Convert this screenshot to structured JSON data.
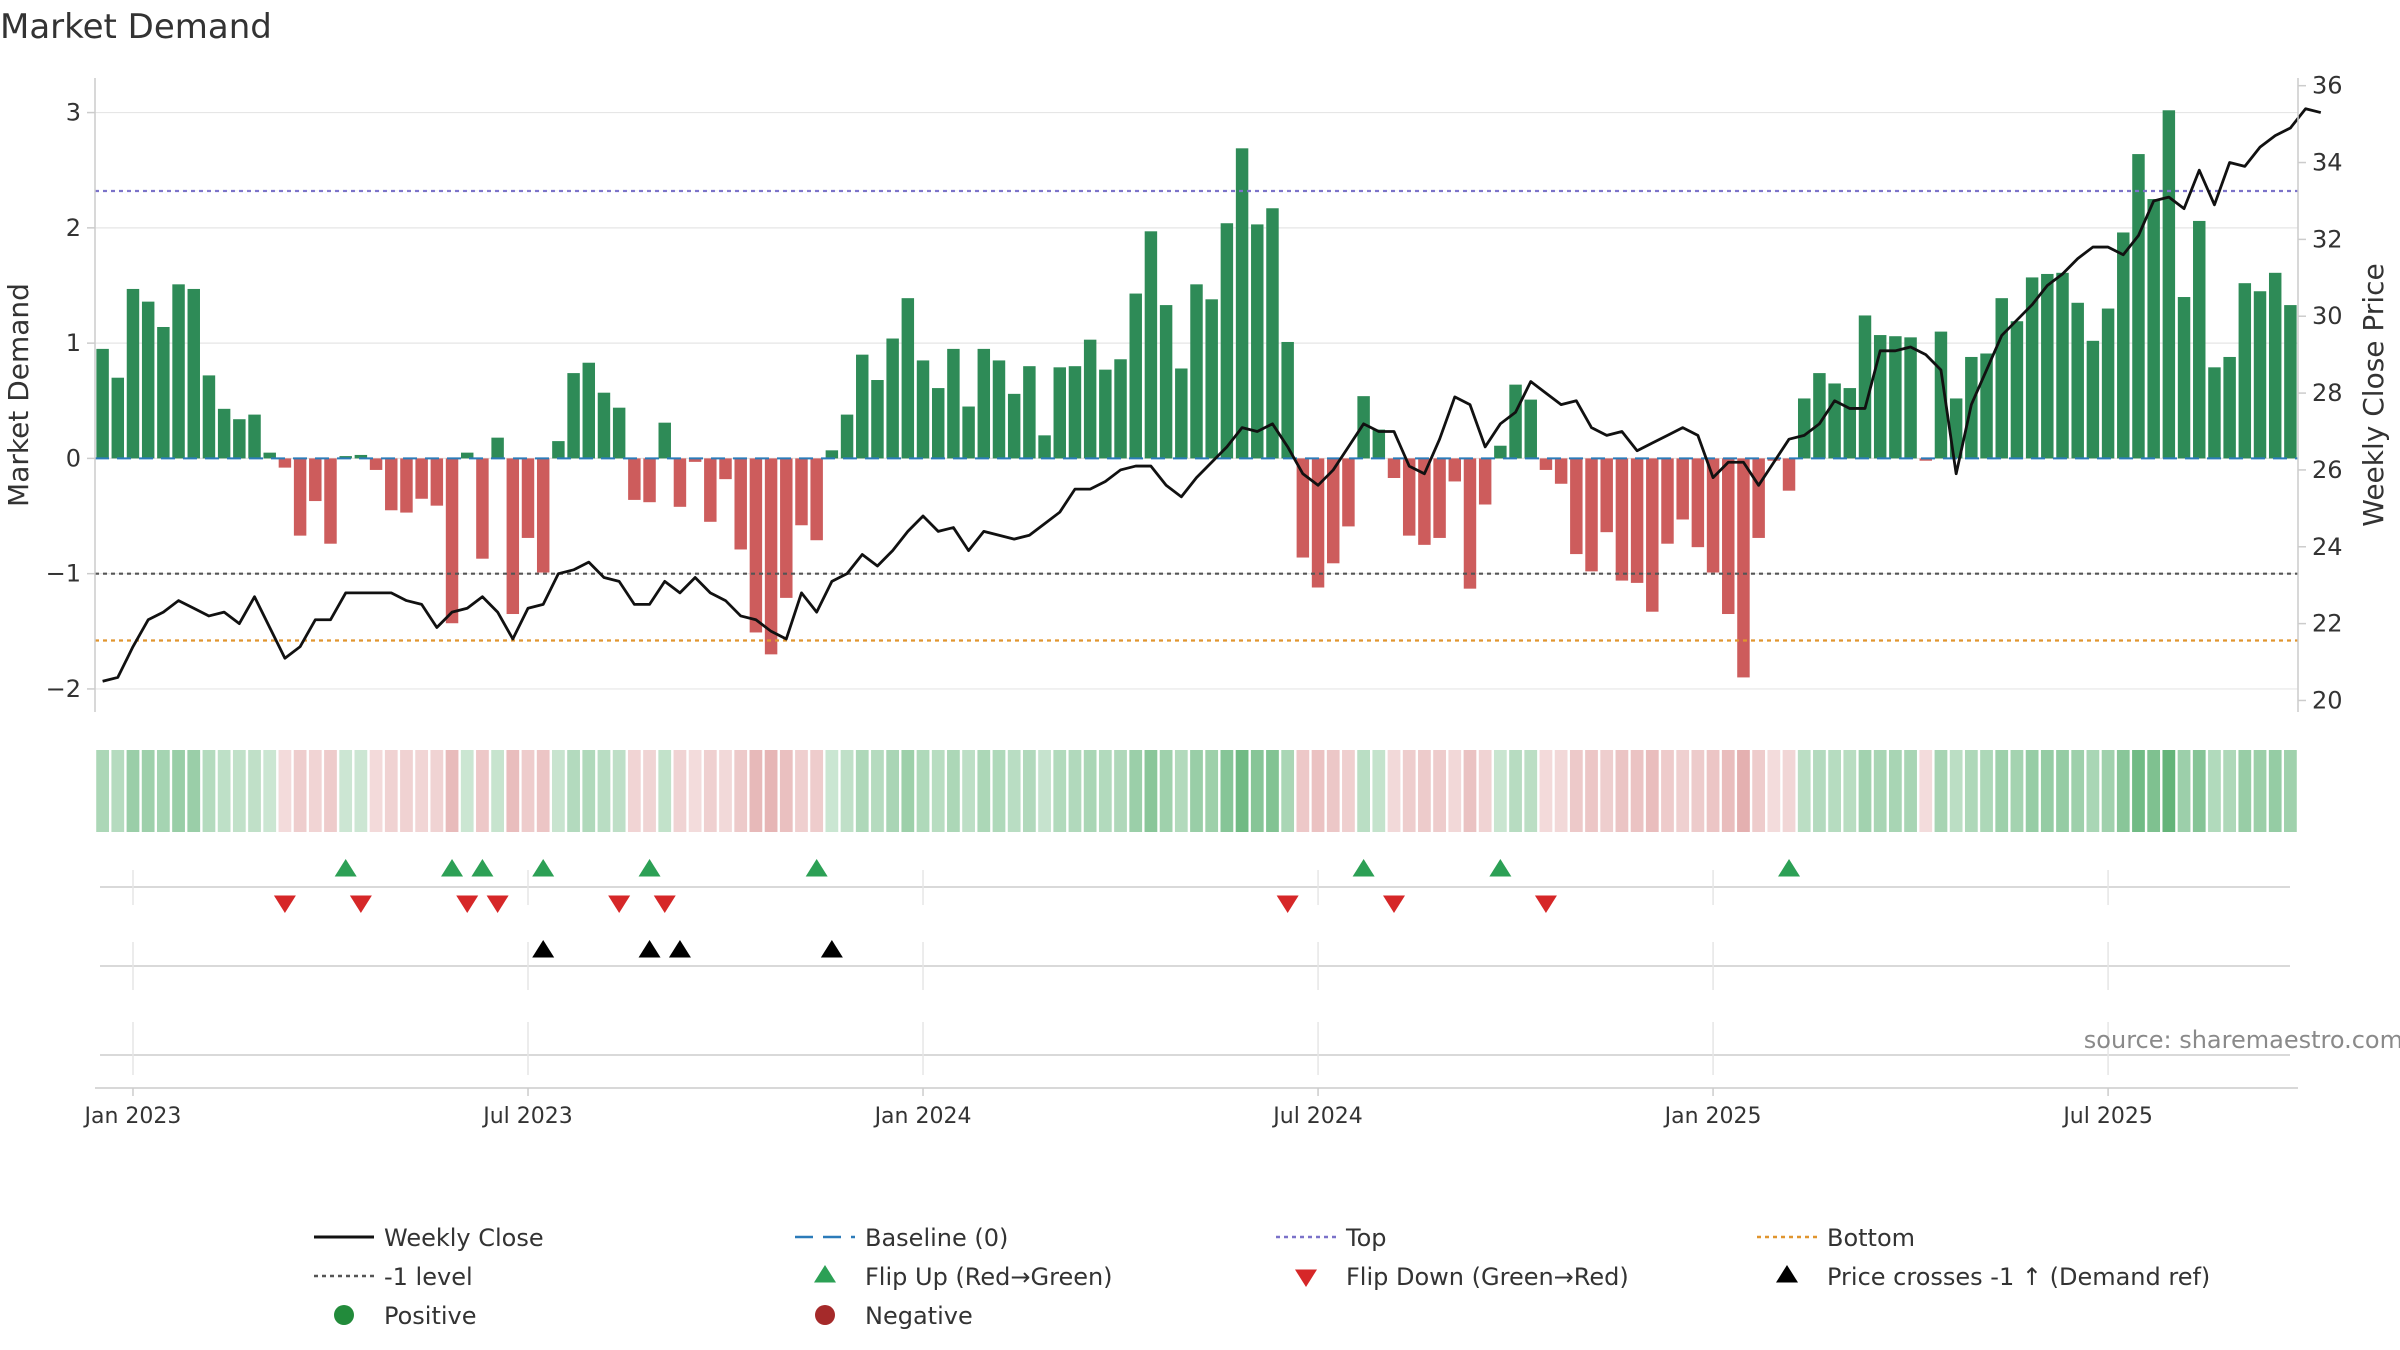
{
  "chart_data": {
    "type": "bar",
    "title": "Market Demand",
    "source": "source: sharemaestro.com",
    "ylabel_left": "Market Demand",
    "ylabel_right": "Weekly Close Price",
    "ylim_left": [
      -2.2,
      3.3
    ],
    "ylim_right": [
      19.7,
      36.2
    ],
    "yticks_left": [
      {
        "value": 3,
        "label": "3"
      },
      {
        "value": 2,
        "label": "2"
      },
      {
        "value": 1,
        "label": "1"
      },
      {
        "value": 0,
        "label": "0"
      },
      {
        "value": -1,
        "label": "−1"
      },
      {
        "value": -2,
        "label": "−2"
      }
    ],
    "yticks_right": [
      {
        "value": 36,
        "label": "36"
      },
      {
        "value": 34,
        "label": "34"
      },
      {
        "value": 32,
        "label": "32"
      },
      {
        "value": 30,
        "label": "30"
      },
      {
        "value": 28,
        "label": "28"
      },
      {
        "value": 26,
        "label": "26"
      },
      {
        "value": 24,
        "label": "24"
      },
      {
        "value": 22,
        "label": "22"
      },
      {
        "value": 20,
        "label": "20"
      }
    ],
    "x_start": "2022-12-19",
    "x_interval_days": 7,
    "xticks": [
      {
        "index": 2,
        "label": "Jan 2023"
      },
      {
        "index": 28,
        "label": "Jul 2023"
      },
      {
        "index": 54,
        "label": "Jan 2024"
      },
      {
        "index": 80,
        "label": "Jul 2024"
      },
      {
        "index": 106,
        "label": "Jan 2025"
      },
      {
        "index": 132,
        "label": "Jul 2025"
      }
    ],
    "reference_lines": {
      "baseline": 0,
      "top": 2.32,
      "minus_one": -1,
      "bottom": -1.58
    },
    "demand": [
      0.95,
      0.7,
      1.47,
      1.36,
      1.14,
      1.51,
      1.47,
      0.72,
      0.43,
      0.34,
      0.38,
      0.05,
      -0.08,
      -0.67,
      -0.37,
      -0.74,
      0.02,
      0.03,
      -0.1,
      -0.45,
      -0.47,
      -0.35,
      -0.41,
      -1.43,
      0.05,
      -0.87,
      0.18,
      -1.35,
      -0.69,
      -0.99,
      0.15,
      0.74,
      0.83,
      0.57,
      0.44,
      -0.36,
      -0.38,
      0.31,
      -0.42,
      -0.03,
      -0.55,
      -0.18,
      -0.79,
      -1.51,
      -1.7,
      -1.21,
      -0.58,
      -0.71,
      0.07,
      0.38,
      0.9,
      0.68,
      1.04,
      1.39,
      0.85,
      0.61,
      0.95,
      0.45,
      0.95,
      0.85,
      0.56,
      0.8,
      0.2,
      0.79,
      0.8,
      1.03,
      0.77,
      0.86,
      1.43,
      1.97,
      1.33,
      0.78,
      1.51,
      1.38,
      2.04,
      2.69,
      2.03,
      2.17,
      1.01,
      -0.86,
      -1.12,
      -0.91,
      -0.59,
      0.54,
      0.25,
      -0.17,
      -0.67,
      -0.75,
      -0.69,
      -0.2,
      -1.13,
      -0.4,
      0.11,
      0.64,
      0.51,
      -0.1,
      -0.22,
      -0.83,
      -0.98,
      -0.64,
      -1.06,
      -1.08,
      -1.33,
      -0.74,
      -0.53,
      -0.77,
      -0.99,
      -1.35,
      -1.9,
      -0.69,
      -0.02,
      -0.28,
      0.52,
      0.74,
      0.65,
      0.61,
      1.24,
      1.07,
      1.06,
      1.05,
      -0.02,
      1.1,
      0.52,
      0.88,
      0.91,
      1.39,
      1.19,
      1.57,
      1.6,
      1.61,
      1.35,
      1.02,
      1.3,
      1.96,
      2.64,
      2.25,
      3.02,
      1.4,
      2.06,
      0.79,
      0.88,
      1.52,
      1.45,
      1.61,
      1.33
    ],
    "price": [
      20.5,
      20.6,
      21.4,
      22.1,
      22.3,
      22.6,
      22.4,
      22.2,
      22.3,
      22.0,
      22.7,
      21.9,
      21.1,
      21.4,
      22.1,
      22.1,
      22.8,
      22.8,
      22.8,
      22.8,
      22.6,
      22.5,
      21.9,
      22.3,
      22.4,
      22.7,
      22.3,
      21.6,
      22.4,
      22.5,
      23.3,
      23.4,
      23.6,
      23.2,
      23.1,
      22.5,
      22.5,
      23.1,
      22.8,
      23.2,
      22.8,
      22.6,
      22.2,
      22.1,
      21.8,
      21.6,
      22.8,
      22.3,
      23.1,
      23.3,
      23.8,
      23.5,
      23.9,
      24.4,
      24.8,
      24.4,
      24.5,
      23.9,
      24.4,
      24.3,
      24.2,
      24.3,
      24.6,
      24.9,
      25.5,
      25.5,
      25.7,
      26.0,
      26.1,
      26.1,
      25.6,
      25.3,
      25.8,
      26.2,
      26.6,
      27.1,
      27.0,
      27.2,
      26.6,
      25.9,
      25.6,
      26.0,
      26.6,
      27.2,
      27.0,
      27.0,
      26.1,
      25.9,
      26.8,
      27.9,
      27.7,
      26.6,
      27.2,
      27.5,
      28.3,
      28.0,
      27.7,
      27.8,
      27.1,
      26.9,
      27.0,
      26.5,
      26.7,
      26.9,
      27.1,
      26.9,
      25.8,
      26.2,
      26.2,
      25.6,
      26.2,
      26.8,
      26.9,
      27.2,
      27.8,
      27.6,
      27.6,
      29.1,
      29.1,
      29.2,
      29.0,
      28.6,
      25.9,
      27.7,
      28.6,
      29.5,
      29.9,
      30.3,
      30.8,
      31.1,
      31.5,
      31.8,
      31.8,
      31.6,
      32.1,
      33.0,
      33.1,
      32.8,
      33.8,
      32.9,
      34.0,
      33.9,
      34.4,
      34.7,
      34.9,
      35.4,
      35.3
    ],
    "flip_up": [
      16,
      23,
      25,
      29,
      36,
      47,
      83,
      92,
      111
    ],
    "flip_down": [
      12,
      17,
      24,
      26,
      34,
      37,
      78,
      85,
      95
    ],
    "price_cross_up": [
      29,
      36,
      38,
      48
    ],
    "legend": [
      {
        "label": "Weekly Close",
        "symbol": "solid-line",
        "color": "#111111"
      },
      {
        "label": "Baseline (0)",
        "symbol": "dashed-line",
        "color": "#2b7bb9"
      },
      {
        "label": "Top",
        "symbol": "dotted-line",
        "color": "#7b72c9"
      },
      {
        "label": "Bottom",
        "symbol": "dotted-line",
        "color": "#e0952e"
      },
      {
        "label": "-1 level",
        "symbol": "dotted-line",
        "color": "#555555"
      },
      {
        "label": "Flip Up (Red→Green)",
        "symbol": "triangle-up",
        "color": "#2ca055"
      },
      {
        "label": "Flip Down (Green→Red)",
        "symbol": "triangle-down",
        "color": "#d62728"
      },
      {
        "label": "Price crosses -1 ↑ (Demand ref)",
        "symbol": "triangle-up",
        "color": "#000000"
      },
      {
        "label": "Positive",
        "symbol": "circle",
        "color": "#228b3b"
      },
      {
        "label": "Negative",
        "symbol": "circle",
        "color": "#a52a2a"
      }
    ],
    "colors": {
      "positive_bar": "#2e8b57",
      "negative_bar": "#cd5c5c",
      "price_line": "#111111",
      "baseline": "#2b7bb9",
      "top_line": "#7b72c9",
      "bottom_line": "#e0952e",
      "minus_one_line": "#555555",
      "flip_up": "#2ca055",
      "flip_down": "#d62728",
      "cross_up": "#000000",
      "grid": "#e6e6e6",
      "axis": "#cccccc"
    }
  }
}
